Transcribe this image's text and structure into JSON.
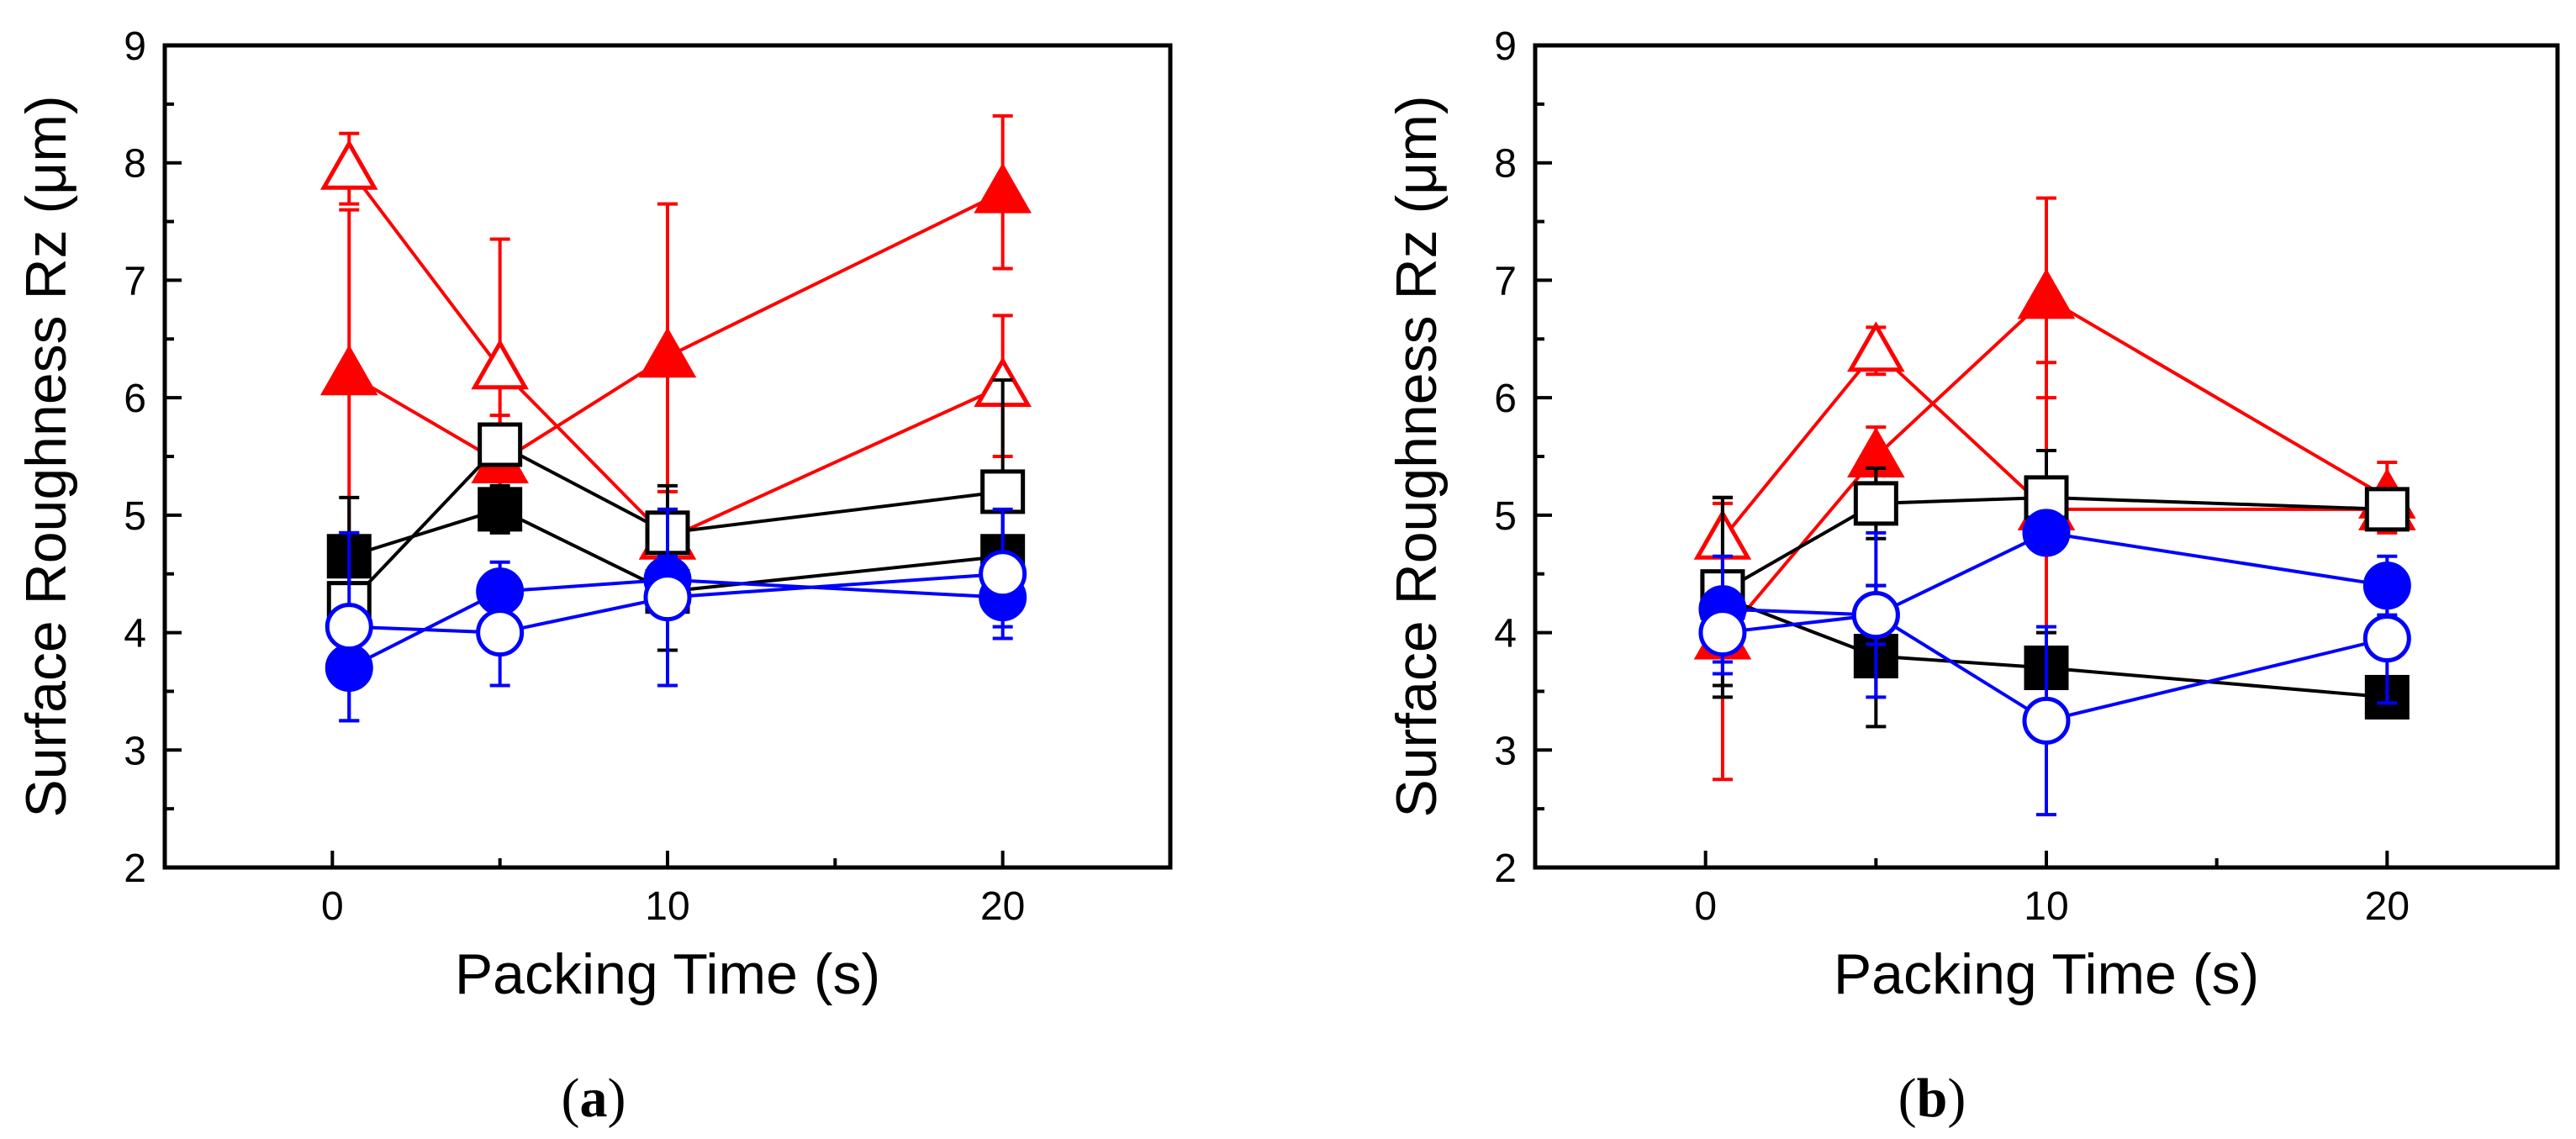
{
  "figure": {
    "panels": [
      {
        "label_open": "(",
        "label_letter": "a",
        "label_close": ")"
      },
      {
        "label_open": "(",
        "label_letter": "b",
        "label_close": ")"
      }
    ]
  },
  "chart_data": [
    {
      "type": "scatter",
      "panel": "a",
      "xlabel": "Packing Time (s)",
      "ylabel": "Surface Roughness Rz (μm)",
      "xlim": [
        -5,
        25
      ],
      "ylim": [
        2,
        9
      ],
      "xticks": [
        "0",
        "10",
        "20"
      ],
      "xtick_values": [
        0,
        10,
        20
      ],
      "yticks": [
        "2",
        "3",
        "4",
        "5",
        "6",
        "7",
        "8",
        "9"
      ],
      "ytick_values": [
        2,
        3,
        4,
        5,
        6,
        7,
        8,
        9
      ],
      "series": [
        {
          "name": "red-filled-triangle",
          "color": "#ff0000",
          "marker": "triangle",
          "filled": true,
          "x": [
            0.5,
            5,
            10,
            20
          ],
          "y": [
            6.2,
            5.45,
            6.35,
            7.75
          ],
          "err": [
            1.4,
            0.4,
            1.3,
            0.65
          ]
        },
        {
          "name": "red-open-triangle",
          "color": "#ff0000",
          "marker": "triangle",
          "filled": false,
          "x": [
            0.5,
            5,
            10,
            20
          ],
          "y": [
            7.95,
            6.25,
            4.8,
            6.1
          ],
          "err": [
            0.3,
            1.1,
            0.4,
            0.6
          ]
        },
        {
          "name": "black-filled-square",
          "color": "#000000",
          "marker": "square",
          "filled": true,
          "x": [
            0.5,
            5,
            10,
            20
          ],
          "y": [
            4.65,
            5.05,
            4.35,
            4.65
          ],
          "err": [
            0.5,
            0.2,
            0.5,
            0.45
          ]
        },
        {
          "name": "black-open-square",
          "color": "#000000",
          "marker": "square",
          "filled": false,
          "x": [
            0.5,
            5,
            10,
            20
          ],
          "y": [
            4.25,
            5.6,
            4.85,
            5.2
          ],
          "err": [
            0.6,
            0.1,
            0.4,
            0.95
          ]
        },
        {
          "name": "blue-filled-circle",
          "color": "#0000ff",
          "marker": "circle",
          "filled": true,
          "x": [
            0.5,
            5,
            10,
            20
          ],
          "y": [
            3.7,
            4.35,
            4.45,
            4.3
          ],
          "err": [
            0.45,
            0.25,
            0.2,
            0.25
          ]
        },
        {
          "name": "blue-open-circle",
          "color": "#0000ff",
          "marker": "circle",
          "filled": false,
          "x": [
            0.5,
            5,
            10,
            20
          ],
          "y": [
            4.05,
            4.0,
            4.3,
            4.5
          ],
          "err": [
            0.8,
            0.45,
            0.75,
            0.55
          ]
        }
      ]
    },
    {
      "type": "scatter",
      "panel": "b",
      "xlabel": "Packing Time (s)",
      "ylabel": "Surface Roughness Rz (μm)",
      "xlim": [
        -5,
        25
      ],
      "ylim": [
        2,
        9
      ],
      "xticks": [
        "0",
        "10",
        "20"
      ],
      "xtick_values": [
        0,
        10,
        20
      ],
      "yticks": [
        "2",
        "3",
        "4",
        "5",
        "6",
        "7",
        "8",
        "9"
      ],
      "ytick_values": [
        2,
        3,
        4,
        5,
        6,
        7,
        8,
        9
      ],
      "series": [
        {
          "name": "red-filled-triangle",
          "color": "#ff0000",
          "marker": "triangle",
          "filled": true,
          "x": [
            0.5,
            5,
            10,
            20
          ],
          "y": [
            3.95,
            5.5,
            6.85,
            5.15
          ],
          "err": [
            1.2,
            0.25,
            0.85,
            0.3
          ]
        },
        {
          "name": "red-open-triangle",
          "color": "#ff0000",
          "marker": "triangle",
          "filled": false,
          "x": [
            0.5,
            5,
            10,
            20
          ],
          "y": [
            4.8,
            6.4,
            5.05,
            5.05
          ],
          "err": [
            0.3,
            0.2,
            1.25,
            0.15
          ]
        },
        {
          "name": "black-filled-square",
          "color": "#000000",
          "marker": "square",
          "filled": true,
          "x": [
            0.5,
            5,
            10,
            20
          ],
          "y": [
            4.3,
            3.8,
            3.7,
            3.45
          ],
          "err": [
            0.85,
            0.6,
            0.3,
            0.05
          ]
        },
        {
          "name": "black-open-square",
          "color": "#000000",
          "marker": "square",
          "filled": false,
          "x": [
            0.5,
            5,
            10,
            20
          ],
          "y": [
            4.35,
            5.1,
            5.15,
            5.05
          ],
          "err": [
            0.8,
            0.3,
            0.4,
            0.1
          ]
        },
        {
          "name": "blue-filled-circle",
          "color": "#0000ff",
          "marker": "circle",
          "filled": true,
          "x": [
            0.5,
            5,
            10,
            20
          ],
          "y": [
            4.2,
            4.15,
            4.85,
            4.4
          ],
          "err": [
            0.45,
            0.25,
            0.15,
            0.25
          ]
        },
        {
          "name": "blue-open-circle",
          "color": "#0000ff",
          "marker": "circle",
          "filled": false,
          "x": [
            0.5,
            5,
            10,
            20
          ],
          "y": [
            4.0,
            4.15,
            3.25,
            3.95
          ],
          "err": [
            0.35,
            0.7,
            0.8,
            0.55
          ]
        }
      ]
    }
  ]
}
